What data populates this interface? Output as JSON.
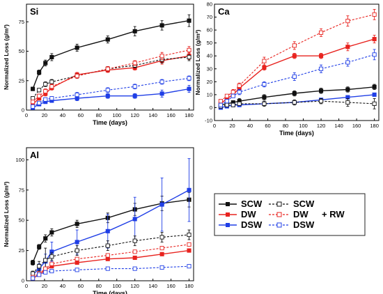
{
  "chart_data": [
    {
      "type": "line",
      "panel_label": "Si",
      "xlabel": "Time (days)",
      "ylabel": "Normalized Loss (g/m²)",
      "xlim": [
        0,
        185
      ],
      "ylim": [
        0,
        90
      ],
      "xticks": [
        0,
        20,
        40,
        60,
        80,
        100,
        120,
        140,
        160,
        180
      ],
      "yticks": [
        0,
        25,
        50,
        75
      ],
      "series": [
        {
          "name": "SCW",
          "style": "solid",
          "color": "#111111",
          "x": [
            7,
            14,
            21,
            28,
            56,
            90,
            120,
            150,
            180
          ],
          "y": [
            18,
            32,
            40,
            45,
            53,
            60,
            67,
            72,
            76
          ],
          "err": [
            1.5,
            2,
            2.5,
            3,
            3,
            3,
            4,
            4,
            5
          ]
        },
        {
          "name": "DW",
          "style": "solid",
          "color": "#e8231f",
          "x": [
            7,
            14,
            21,
            28,
            56,
            90,
            120,
            150,
            180
          ],
          "y": [
            5,
            10,
            14,
            19,
            30,
            34,
            36,
            42,
            46
          ],
          "err": [
            1,
            1.5,
            2,
            2,
            2,
            2,
            2,
            3,
            3
          ]
        },
        {
          "name": "DSW",
          "style": "solid",
          "color": "#1f3ee6",
          "x": [
            7,
            14,
            21,
            28,
            56,
            90,
            120,
            150,
            180
          ],
          "y": [
            2,
            5,
            7,
            8,
            10,
            12,
            12,
            14,
            18
          ],
          "err": [
            1,
            1,
            1,
            1.5,
            2,
            2,
            2,
            3,
            3
          ]
        },
        {
          "name": "SCW",
          "style": "dashed",
          "color": "#111111",
          "x": [
            7,
            14,
            21,
            28,
            56,
            90,
            120,
            150,
            180
          ],
          "y": [
            10,
            17,
            22,
            24,
            29,
            35,
            38,
            43,
            45
          ],
          "err": [
            1,
            1.5,
            2,
            2,
            2,
            2,
            2,
            3,
            3
          ]
        },
        {
          "name": "DW",
          "style": "dashed",
          "color": "#e8231f",
          "x": [
            7,
            14,
            21,
            28,
            56,
            90,
            120,
            150,
            180
          ],
          "y": [
            7,
            12,
            16,
            20,
            29,
            35,
            40,
            46,
            51
          ],
          "err": [
            1,
            1.5,
            2,
            2,
            2,
            2,
            2,
            3,
            3
          ]
        },
        {
          "name": "DSW",
          "style": "dashed",
          "color": "#1f3ee6",
          "x": [
            7,
            14,
            21,
            28,
            56,
            90,
            120,
            150,
            180
          ],
          "y": [
            3,
            6,
            9,
            10,
            13,
            17,
            20,
            24,
            27
          ],
          "err": [
            1,
            1,
            1,
            1.5,
            2,
            2,
            2,
            2,
            2
          ]
        }
      ]
    },
    {
      "type": "line",
      "panel_label": "Ca",
      "xlabel": "Time (days)",
      "ylabel": "Normalized Loss (g/m²)",
      "xlim": [
        0,
        185
      ],
      "ylim": [
        -10,
        80
      ],
      "xticks": [
        0,
        20,
        40,
        60,
        80,
        100,
        120,
        140,
        160,
        180
      ],
      "yticks": [
        -10,
        0,
        10,
        20,
        30,
        40,
        50,
        60,
        70,
        80
      ],
      "series": [
        {
          "name": "SCW",
          "style": "solid",
          "color": "#111111",
          "x": [
            7,
            14,
            21,
            28,
            56,
            90,
            120,
            150,
            180
          ],
          "y": [
            2,
            3,
            4,
            5,
            8,
            11,
            13,
            14,
            16
          ],
          "err": [
            1,
            1,
            1,
            2,
            2,
            2,
            2,
            2,
            2
          ]
        },
        {
          "name": "DW",
          "style": "solid",
          "color": "#e8231f",
          "x": [
            7,
            14,
            21,
            28,
            56,
            90,
            120,
            150,
            180
          ],
          "y": [
            3,
            7,
            10,
            15,
            31,
            40,
            40,
            47,
            53
          ],
          "err": [
            1,
            1,
            1,
            2,
            2,
            2,
            2,
            3,
            3
          ]
        },
        {
          "name": "DSW",
          "style": "solid",
          "color": "#1f3ee6",
          "x": [
            7,
            14,
            21,
            28,
            56,
            90,
            120,
            150,
            180
          ],
          "y": [
            0,
            1,
            2,
            2,
            3,
            4,
            6,
            8,
            10
          ],
          "err": [
            1,
            1,
            1,
            1,
            1,
            1,
            1,
            1,
            1
          ]
        },
        {
          "name": "SCW",
          "style": "dashed",
          "color": "#111111",
          "x": [
            7,
            14,
            21,
            28,
            56,
            90,
            120,
            150,
            180
          ],
          "y": [
            1,
            2,
            2,
            3,
            3,
            4,
            5,
            4,
            3
          ],
          "err": [
            1,
            1,
            1,
            1,
            2,
            2,
            2,
            3,
            4
          ]
        },
        {
          "name": "DW",
          "style": "dashed",
          "color": "#e8231f",
          "x": [
            7,
            14,
            21,
            28,
            56,
            90,
            120,
            150,
            180
          ],
          "y": [
            5,
            9,
            12,
            17,
            36,
            48,
            58,
            67,
            72
          ],
          "err": [
            1,
            1,
            2,
            2,
            3,
            3,
            3,
            4,
            4
          ]
        },
        {
          "name": "DSW",
          "style": "dashed",
          "color": "#1f3ee6",
          "x": [
            7,
            14,
            21,
            28,
            56,
            90,
            120,
            150,
            180
          ],
          "y": [
            2,
            5,
            9,
            12,
            18,
            24,
            30,
            35,
            41
          ],
          "err": [
            1,
            1,
            1,
            2,
            2,
            3,
            3,
            3,
            4
          ]
        }
      ]
    },
    {
      "type": "line",
      "panel_label": "Al",
      "xlabel": "Time (days)",
      "ylabel": "Normalized Loss (g/m²)",
      "xlim": [
        0,
        185
      ],
      "ylim": [
        0,
        110
      ],
      "xticks": [
        0,
        20,
        40,
        60,
        80,
        100,
        120,
        140,
        160,
        180
      ],
      "yticks": [
        0,
        25,
        50,
        75,
        100
      ],
      "series": [
        {
          "name": "SCW",
          "style": "solid",
          "color": "#111111",
          "x": [
            7,
            14,
            21,
            28,
            56,
            90,
            120,
            150,
            180
          ],
          "y": [
            15,
            28,
            35,
            40,
            47,
            52,
            59,
            64,
            67
          ],
          "err": [
            2,
            2,
            3,
            3,
            3,
            4,
            5,
            6,
            6
          ]
        },
        {
          "name": "DW",
          "style": "solid",
          "color": "#e8231f",
          "x": [
            7,
            14,
            21,
            28,
            56,
            90,
            120,
            150,
            180
          ],
          "y": [
            2,
            5,
            9,
            12,
            15,
            18,
            19,
            22,
            25
          ],
          "err": [
            1,
            1,
            1,
            1,
            1,
            1,
            1,
            1,
            1
          ]
        },
        {
          "name": "DSW",
          "style": "solid",
          "color": "#1f3ee6",
          "x": [
            7,
            14,
            21,
            28,
            56,
            90,
            120,
            150,
            180
          ],
          "y": [
            5,
            10,
            16,
            24,
            32,
            41,
            51,
            63,
            75
          ],
          "err": [
            2,
            4,
            6,
            8,
            10,
            14,
            18,
            22,
            26
          ]
        },
        {
          "name": "SCW",
          "style": "dashed",
          "color": "#111111",
          "x": [
            7,
            14,
            21,
            28,
            56,
            90,
            120,
            150,
            180
          ],
          "y": [
            6,
            12,
            17,
            20,
            25,
            29,
            33,
            36,
            38
          ],
          "err": [
            2,
            4,
            10,
            3,
            4,
            4,
            4,
            4,
            4
          ]
        },
        {
          "name": "DW",
          "style": "dashed",
          "color": "#e8231f",
          "x": [
            7,
            14,
            21,
            28,
            56,
            90,
            120,
            150,
            180
          ],
          "y": [
            3,
            6,
            10,
            14,
            18,
            21,
            24,
            27,
            30
          ],
          "err": [
            1,
            1,
            1,
            1,
            1,
            1,
            1,
            1,
            1
          ]
        },
        {
          "name": "DSW",
          "style": "dashed",
          "color": "#1f3ee6",
          "x": [
            7,
            14,
            21,
            28,
            56,
            90,
            120,
            150,
            180
          ],
          "y": [
            2,
            5,
            7,
            8,
            9,
            10,
            10,
            11,
            12
          ],
          "err": [
            1,
            1,
            1,
            1,
            1,
            1,
            1,
            1,
            1
          ]
        }
      ]
    }
  ],
  "legend": {
    "rows": [
      {
        "solid_label": "SCW",
        "dashed_label": "SCW",
        "color": "#111111"
      },
      {
        "solid_label": "DW",
        "dashed_label": "DW",
        "color": "#e8231f"
      },
      {
        "solid_label": "DSW",
        "dashed_label": "DSW",
        "color": "#1f3ee6"
      }
    ],
    "dashed_suffix": "+ RW"
  }
}
